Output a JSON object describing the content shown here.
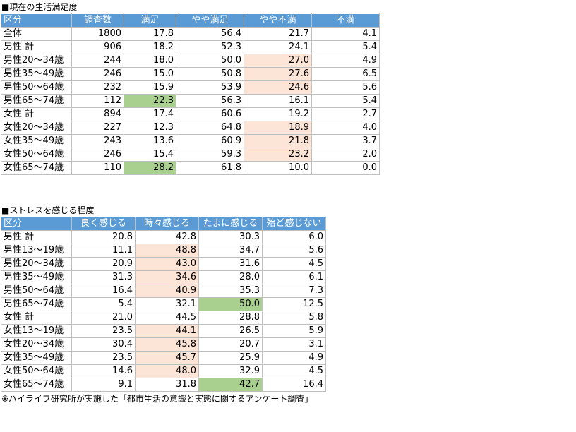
{
  "colors": {
    "header_bg": "#5b9bd5",
    "highlight_peach": "#fce4d6",
    "highlight_green": "#a9d08e"
  },
  "table1": {
    "title": "■現在の生活満足度",
    "headers": [
      "区分",
      "調査数",
      "満足",
      "やや満足",
      "やや不満",
      "不満"
    ],
    "rows": [
      [
        "全体",
        "1800",
        "17.8",
        "56.4",
        "21.7",
        "4.1"
      ],
      [
        "男性 計",
        "906",
        "18.2",
        "52.3",
        "24.1",
        "5.4"
      ],
      [
        "男性20～34歳",
        "244",
        "18.0",
        "50.0",
        "27.0",
        "4.9"
      ],
      [
        "男性35～49歳",
        "246",
        "15.0",
        "50.8",
        "27.6",
        "6.5"
      ],
      [
        "男性50～64歳",
        "232",
        "15.9",
        "53.9",
        "24.6",
        "5.6"
      ],
      [
        "男性65～74歳",
        "112",
        "22.3",
        "56.3",
        "16.1",
        "5.4"
      ],
      [
        "女性 計",
        "894",
        "17.4",
        "60.6",
        "19.2",
        "2.7"
      ],
      [
        "女性20～34歳",
        "227",
        "12.3",
        "64.8",
        "18.9",
        "4.0"
      ],
      [
        "女性35～49歳",
        "243",
        "13.6",
        "60.9",
        "21.8",
        "3.7"
      ],
      [
        "女性50～64歳",
        "246",
        "15.4",
        "59.3",
        "23.2",
        "2.0"
      ],
      [
        "女性65～74歳",
        "110",
        "28.2",
        "61.8",
        "10.0",
        "0.0"
      ]
    ],
    "highlights": [
      [
        null,
        null,
        null,
        null,
        null,
        null
      ],
      [
        null,
        null,
        null,
        null,
        null,
        null
      ],
      [
        null,
        null,
        null,
        null,
        "peach",
        null
      ],
      [
        null,
        null,
        null,
        null,
        "peach",
        null
      ],
      [
        null,
        null,
        null,
        null,
        "peach",
        null
      ],
      [
        null,
        null,
        "green",
        null,
        null,
        null
      ],
      [
        null,
        null,
        null,
        null,
        null,
        null
      ],
      [
        null,
        null,
        null,
        null,
        "peach",
        null
      ],
      [
        null,
        null,
        null,
        null,
        "peach",
        null
      ],
      [
        null,
        null,
        null,
        null,
        "peach",
        null
      ],
      [
        null,
        null,
        "green",
        null,
        null,
        null
      ]
    ]
  },
  "table2": {
    "title": "■ストレスを感じる程度",
    "headers": [
      "区分",
      "良く感じる",
      "時々感じる",
      "たまに感じる",
      "殆ど感じない"
    ],
    "rows": [
      [
        "男性 計",
        "20.8",
        "42.8",
        "30.3",
        "6.0"
      ],
      [
        "男性13～19歳",
        "11.1",
        "48.8",
        "34.7",
        "5.6"
      ],
      [
        "男性20～34歳",
        "20.9",
        "43.0",
        "31.6",
        "4.5"
      ],
      [
        "男性35～49歳",
        "31.3",
        "34.6",
        "28.0",
        "6.1"
      ],
      [
        "男性50～64歳",
        "16.4",
        "40.9",
        "35.3",
        "7.3"
      ],
      [
        "男性65～74歳",
        "5.4",
        "32.1",
        "50.0",
        "12.5"
      ],
      [
        "女性 計",
        "21.0",
        "44.5",
        "28.8",
        "5.8"
      ],
      [
        "女性13～19歳",
        "23.5",
        "44.1",
        "26.5",
        "5.9"
      ],
      [
        "女性20～34歳",
        "30.4",
        "45.8",
        "20.7",
        "3.1"
      ],
      [
        "女性35～49歳",
        "23.5",
        "45.7",
        "25.9",
        "4.9"
      ],
      [
        "女性50～64歳",
        "14.6",
        "48.0",
        "32.9",
        "4.5"
      ],
      [
        "女性65～74歳",
        "9.1",
        "31.8",
        "42.7",
        "16.4"
      ]
    ],
    "highlights": [
      [
        null,
        null,
        null,
        null,
        null
      ],
      [
        null,
        null,
        "peach",
        null,
        null
      ],
      [
        null,
        null,
        "peach",
        null,
        null
      ],
      [
        null,
        null,
        "peach",
        null,
        null
      ],
      [
        null,
        null,
        "peach",
        null,
        null
      ],
      [
        null,
        null,
        null,
        "green",
        null
      ],
      [
        null,
        null,
        null,
        null,
        null
      ],
      [
        null,
        null,
        "peach",
        null,
        null
      ],
      [
        null,
        null,
        "peach",
        null,
        null
      ],
      [
        null,
        null,
        "peach",
        null,
        null
      ],
      [
        null,
        null,
        "peach",
        null,
        null
      ],
      [
        null,
        null,
        null,
        "green",
        null
      ]
    ]
  },
  "footnote": "※ハイライフ研究所が実施した「都市生活の意識と実態に関するアンケート調査」"
}
